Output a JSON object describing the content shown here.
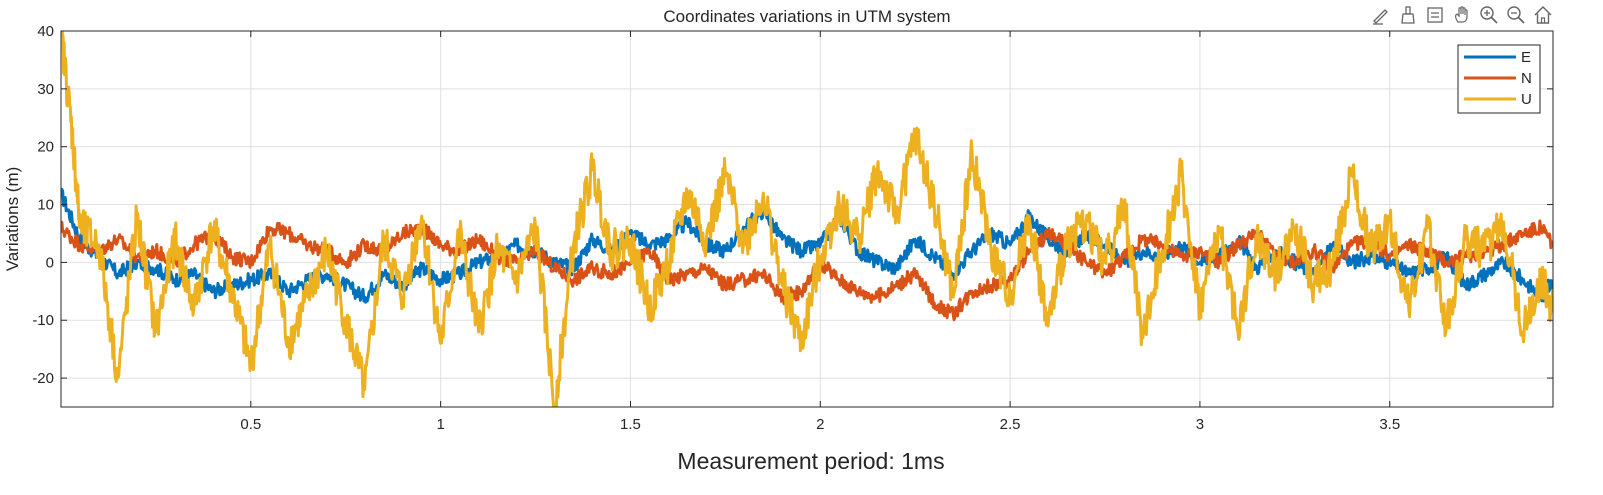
{
  "toolbar": {
    "icons": [
      "edit-data-icon",
      "brush-icon",
      "data-tips-icon",
      "pan-icon",
      "zoom-in-icon",
      "zoom-out-icon",
      "home-icon"
    ]
  },
  "chart_data": {
    "type": "line",
    "title": "Coordinates variations in UTM system",
    "xlabel": "Measurement period: 1ms",
    "ylabel": "Variations (m)",
    "xlim": [
      0,
      3.93
    ],
    "ylim": [
      -25,
      40
    ],
    "xticks": [
      0.5,
      1,
      1.5,
      2,
      2.5,
      3,
      3.5
    ],
    "xtick_labels": [
      "0.5",
      "1",
      "1.5",
      "2",
      "2.5",
      "3",
      "3.5"
    ],
    "yticks": [
      -20,
      -10,
      0,
      10,
      20,
      30,
      40
    ],
    "ytick_labels": [
      "-20",
      "-10",
      "0",
      "10",
      "20",
      "30",
      "40"
    ],
    "grid": true,
    "legend_position": "top-right",
    "series": [
      {
        "name": "E",
        "color": "#0072BD",
        "x": [
          0,
          0.05,
          0.1,
          0.15,
          0.2,
          0.25,
          0.3,
          0.35,
          0.4,
          0.45,
          0.5,
          0.55,
          0.6,
          0.65,
          0.7,
          0.75,
          0.8,
          0.85,
          0.9,
          0.95,
          1.0,
          1.05,
          1.1,
          1.15,
          1.2,
          1.25,
          1.3,
          1.35,
          1.4,
          1.45,
          1.5,
          1.55,
          1.6,
          1.65,
          1.7,
          1.75,
          1.8,
          1.85,
          1.9,
          1.95,
          2.0,
          2.05,
          2.1,
          2.15,
          2.2,
          2.25,
          2.3,
          2.35,
          2.4,
          2.45,
          2.5,
          2.55,
          2.6,
          2.65,
          2.7,
          2.75,
          2.8,
          2.85,
          2.9,
          2.95,
          3.0,
          3.05,
          3.1,
          3.15,
          3.2,
          3.25,
          3.3,
          3.35,
          3.4,
          3.45,
          3.5,
          3.55,
          3.6,
          3.65,
          3.7,
          3.75,
          3.8,
          3.85,
          3.9,
          3.93
        ],
        "values": [
          12,
          4,
          1,
          -2,
          0,
          -1,
          -3,
          -2,
          -5,
          -4,
          -3,
          -2,
          -5,
          -3,
          -2,
          -4,
          -6,
          -2,
          -4,
          -1,
          -3,
          -2,
          0,
          1,
          3,
          2,
          0,
          -1,
          4,
          2,
          5,
          3,
          4,
          7,
          3,
          2,
          6,
          9,
          4,
          2,
          3,
          8,
          2,
          0,
          -1,
          4,
          1,
          -2,
          2,
          5,
          3,
          8,
          4,
          2,
          5,
          3,
          0,
          2,
          1,
          3,
          0,
          1,
          4,
          -1,
          2,
          0,
          -2,
          3,
          0,
          1,
          0,
          -2,
          -1,
          1,
          -4,
          -2,
          0,
          -3,
          -6,
          -3
        ]
      },
      {
        "name": "N",
        "color": "#D95319",
        "x": [
          0,
          0.05,
          0.1,
          0.15,
          0.2,
          0.25,
          0.3,
          0.35,
          0.4,
          0.45,
          0.5,
          0.55,
          0.6,
          0.65,
          0.7,
          0.75,
          0.8,
          0.85,
          0.9,
          0.95,
          1.0,
          1.05,
          1.1,
          1.15,
          1.2,
          1.25,
          1.3,
          1.35,
          1.4,
          1.45,
          1.5,
          1.55,
          1.6,
          1.65,
          1.7,
          1.75,
          1.8,
          1.85,
          1.9,
          1.95,
          2.0,
          2.05,
          2.1,
          2.15,
          2.2,
          2.25,
          2.3,
          2.35,
          2.4,
          2.45,
          2.5,
          2.55,
          2.6,
          2.65,
          2.7,
          2.75,
          2.8,
          2.85,
          2.9,
          2.95,
          3.0,
          3.05,
          3.1,
          3.15,
          3.2,
          3.25,
          3.3,
          3.35,
          3.4,
          3.45,
          3.5,
          3.55,
          3.6,
          3.65,
          3.7,
          3.75,
          3.8,
          3.85,
          3.9,
          3.93
        ],
        "values": [
          6,
          3,
          2,
          4,
          1,
          2,
          0,
          3,
          5,
          1,
          0,
          6,
          5,
          3,
          2,
          0,
          3,
          2,
          5,
          6,
          3,
          2,
          4,
          1,
          0,
          2,
          -1,
          -3,
          -1,
          -2,
          0,
          2,
          -3,
          -2,
          -1,
          -4,
          -3,
          -2,
          -6,
          -5,
          0,
          -3,
          -5,
          -6,
          -4,
          -2,
          -7,
          -9,
          -5,
          -4,
          -3,
          2,
          5,
          3,
          0,
          -2,
          1,
          4,
          3,
          1,
          2,
          0,
          3,
          5,
          1,
          0,
          2,
          -1,
          3,
          4,
          1,
          3,
          2,
          0,
          1,
          2,
          3,
          5,
          6,
          3
        ]
      },
      {
        "name": "U",
        "color": "#EDB120",
        "x": [
          0,
          0.03,
          0.05,
          0.1,
          0.15,
          0.2,
          0.25,
          0.3,
          0.35,
          0.4,
          0.45,
          0.5,
          0.55,
          0.6,
          0.65,
          0.7,
          0.75,
          0.8,
          0.85,
          0.9,
          0.95,
          1.0,
          1.05,
          1.1,
          1.15,
          1.2,
          1.25,
          1.3,
          1.35,
          1.4,
          1.45,
          1.5,
          1.55,
          1.6,
          1.65,
          1.7,
          1.75,
          1.8,
          1.85,
          1.9,
          1.95,
          2.0,
          2.05,
          2.1,
          2.15,
          2.2,
          2.25,
          2.3,
          2.35,
          2.4,
          2.45,
          2.5,
          2.55,
          2.6,
          2.65,
          2.7,
          2.75,
          2.8,
          2.85,
          2.9,
          2.95,
          3.0,
          3.05,
          3.1,
          3.15,
          3.2,
          3.25,
          3.3,
          3.35,
          3.4,
          3.45,
          3.5,
          3.55,
          3.6,
          3.65,
          3.7,
          3.75,
          3.8,
          3.85,
          3.9,
          3.93
        ],
        "values": [
          40,
          22,
          6,
          3,
          -20,
          8,
          -12,
          4,
          -8,
          6,
          -5,
          -18,
          3,
          -14,
          -6,
          2,
          -10,
          -22,
          4,
          -6,
          8,
          -14,
          5,
          -12,
          2,
          -3,
          6,
          -25,
          3,
          16,
          2,
          4,
          -8,
          0,
          12,
          4,
          15,
          3,
          12,
          -4,
          -14,
          1,
          10,
          4,
          16,
          8,
          22,
          10,
          -6,
          19,
          2,
          -6,
          8,
          -11,
          4,
          7,
          0,
          10,
          -13,
          2,
          15,
          -8,
          6,
          -12,
          4,
          -2,
          6,
          -4,
          0,
          15,
          2,
          7,
          -8,
          6,
          -11,
          4,
          2,
          7,
          -12,
          -3,
          -8
        ]
      }
    ]
  }
}
